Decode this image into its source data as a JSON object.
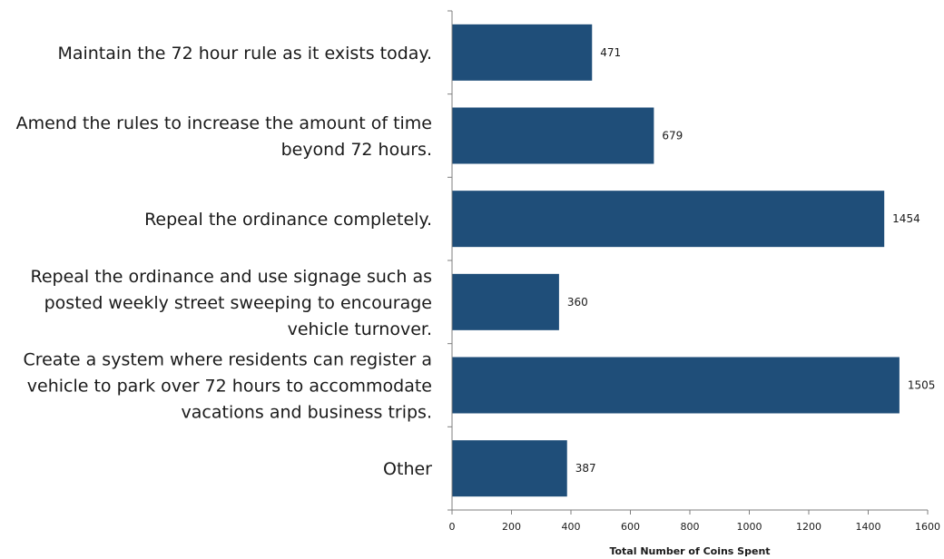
{
  "chart_data": {
    "type": "bar",
    "orientation": "horizontal",
    "categories": [
      [
        "Maintain the 72 hour rule as it exists today."
      ],
      [
        "Amend the rules to increase the amount of time",
        "beyond 72 hours."
      ],
      [
        "Repeal the ordinance completely."
      ],
      [
        "Repeal the ordinance and use signage such as",
        "posted weekly street sweeping to encourage",
        "vehicle turnover."
      ],
      [
        "Create a system where residents can register a",
        "vehicle to park over 72 hours to accommodate",
        "vacations and business trips."
      ],
      [
        "Other"
      ]
    ],
    "values": [
      471,
      679,
      1454,
      360,
      1505,
      387
    ],
    "data_labels": [
      "471",
      "679",
      "1454",
      "360",
      "1505",
      "387"
    ],
    "xlabel": "Total Number of Coins Spent",
    "xlim": [
      0,
      1600
    ],
    "xticks": [
      0,
      200,
      400,
      600,
      800,
      1000,
      1200,
      1400,
      1600
    ],
    "grid": false,
    "legend": "none",
    "bar_color": "#1f4e79"
  }
}
